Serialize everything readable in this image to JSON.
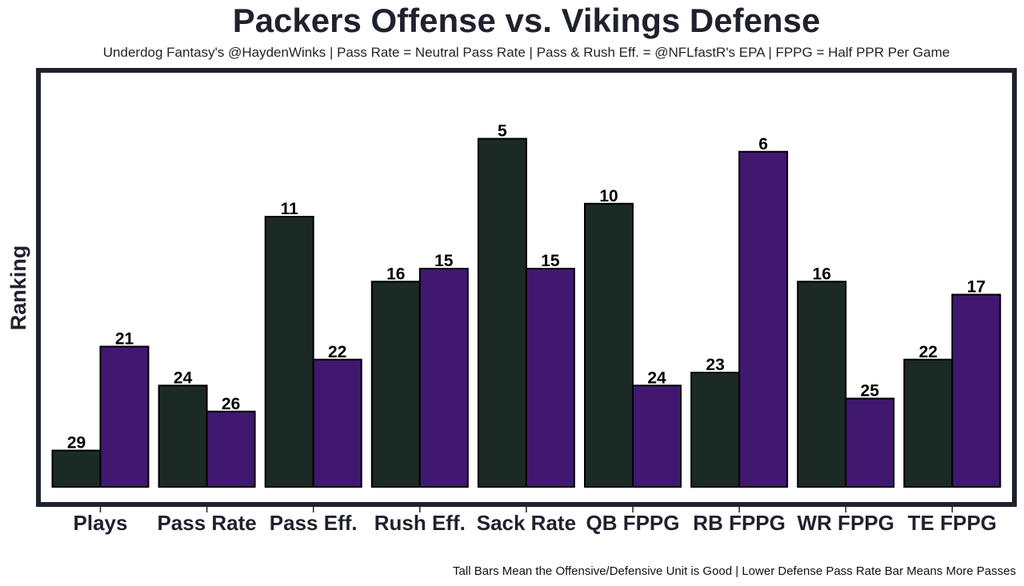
{
  "title": "Packers Offense vs. Vikings Defense",
  "subtitle": "Underdog Fantasy's @HaydenWinks | Pass Rate = Neutral Pass Rate | Pass & Rush Eff. = @NFLfastR's EPA | FPPG = Half PPR Per Game",
  "footer": "Tall Bars Mean the Offensive/Defensive Unit is Good | Lower Defense Pass Rate Bar Means More Passes",
  "colors": {
    "offense": "#1b2a24",
    "defense": "#401870",
    "frame": "#1f222d"
  },
  "chart_data": {
    "type": "bar",
    "title": "Packers Offense vs. Vikings Defense",
    "xlabel": "",
    "ylabel": "Ranking",
    "categories": [
      "Plays",
      "Pass Rate",
      "Pass Eff.",
      "Rush Eff.",
      "Sack Rate",
      "QB FPPG",
      "RB FPPG",
      "WR FPPG",
      "TE FPPG"
    ],
    "series": [
      {
        "name": "Packers Offense",
        "values": [
          29,
          24,
          11,
          16,
          5,
          10,
          23,
          16,
          22
        ]
      },
      {
        "name": "Vikings Defense",
        "values": [
          21,
          26,
          22,
          15,
          15,
          24,
          6,
          25,
          17
        ]
      }
    ],
    "y_inverted": true,
    "ylim": [
      31.8,
      1
    ],
    "grid": false,
    "legend": "none"
  }
}
